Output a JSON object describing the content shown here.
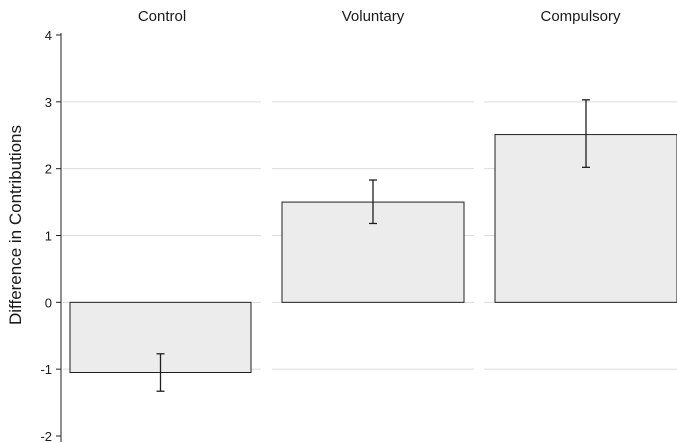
{
  "chart_data": {
    "type": "bar",
    "ylabel": "Difference in Contributions",
    "ylim": [
      -2,
      4
    ],
    "yticks": [
      4,
      3,
      2,
      1,
      0,
      -1,
      -2
    ],
    "grid": true,
    "panels": [
      {
        "name": "Control",
        "value": -1.05,
        "ci": [
          -1.33,
          -0.77
        ]
      },
      {
        "name": "Voluntary",
        "value": 1.5,
        "ci": [
          1.18,
          1.83
        ]
      },
      {
        "name": "Compulsory",
        "value": 2.51,
        "ci": [
          2.02,
          3.03
        ]
      }
    ]
  }
}
